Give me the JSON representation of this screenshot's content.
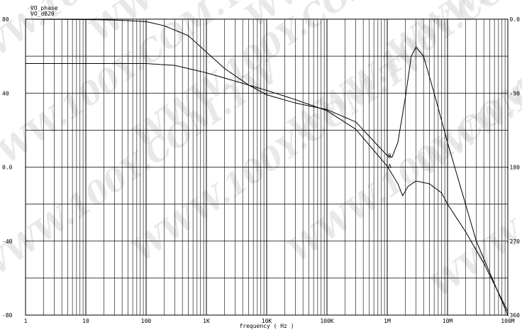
{
  "chart_data": {
    "type": "line",
    "xlabel": "frequency ( Hz )",
    "x_scale": "log",
    "xlim": [
      1,
      100000000
    ],
    "x_ticks": [
      1,
      10,
      100,
      1000,
      10000,
      100000,
      1000000,
      10000000,
      100000000
    ],
    "x_tick_labels": [
      "1",
      "10",
      "100",
      "1K",
      "10K",
      "100K",
      "1M",
      "10M",
      "100M"
    ],
    "ylim_left": [
      -80,
      80
    ],
    "y_ticks_left": [
      80,
      40,
      0,
      -40,
      -80
    ],
    "y_tick_labels_left": [
      "80",
      "40",
      "0.0",
      "-40",
      "-80"
    ],
    "ylim_right": [
      -360,
      0
    ],
    "y_ticks_right": [
      0,
      -90,
      -180,
      -270,
      -360
    ],
    "y_tick_labels_right": [
      "0.0",
      "-90",
      "-180",
      "-270",
      "-360"
    ],
    "grid": true,
    "legend": [
      "VO_phase",
      "VO_dB20"
    ],
    "legend_position": "top-left",
    "series": [
      {
        "name": "VO_dB20",
        "marker": "A",
        "axis": "left",
        "x": [
          1,
          10,
          100,
          300,
          1000,
          3000,
          10000,
          30000,
          100000,
          300000,
          1000000,
          1500000,
          1800000,
          2200000,
          3000000,
          5000000,
          8000000,
          10000000,
          20000000,
          40000000,
          100000000
        ],
        "y": [
          56,
          56,
          56,
          55,
          51,
          46.5,
          41.5,
          36.5,
          30.5,
          20.5,
          0.5,
          -9,
          -15.5,
          -10.5,
          -7.5,
          -9,
          -14,
          -20,
          -35,
          -52,
          -78
        ]
      },
      {
        "name": "VO_phase",
        "marker": "B",
        "axis": "right",
        "x": [
          1,
          10,
          30,
          100,
          200,
          500,
          1000,
          2000,
          5000,
          10000,
          30000,
          100000,
          300000,
          1000000,
          1200000,
          1500000,
          2000000,
          2500000,
          3000000,
          4000000,
          6000000,
          10000000,
          30000000,
          100000000
        ],
        "y": [
          0,
          -0.5,
          -1,
          -3,
          -8,
          -20,
          -40,
          -60,
          -80,
          -92,
          -102,
          -110,
          -125,
          -166,
          -168,
          -150,
          -95,
          -45,
          -34,
          -45,
          -90,
          -150,
          -270,
          -360
        ]
      }
    ]
  },
  "watermark": "WWW.100Y.COM.TW"
}
